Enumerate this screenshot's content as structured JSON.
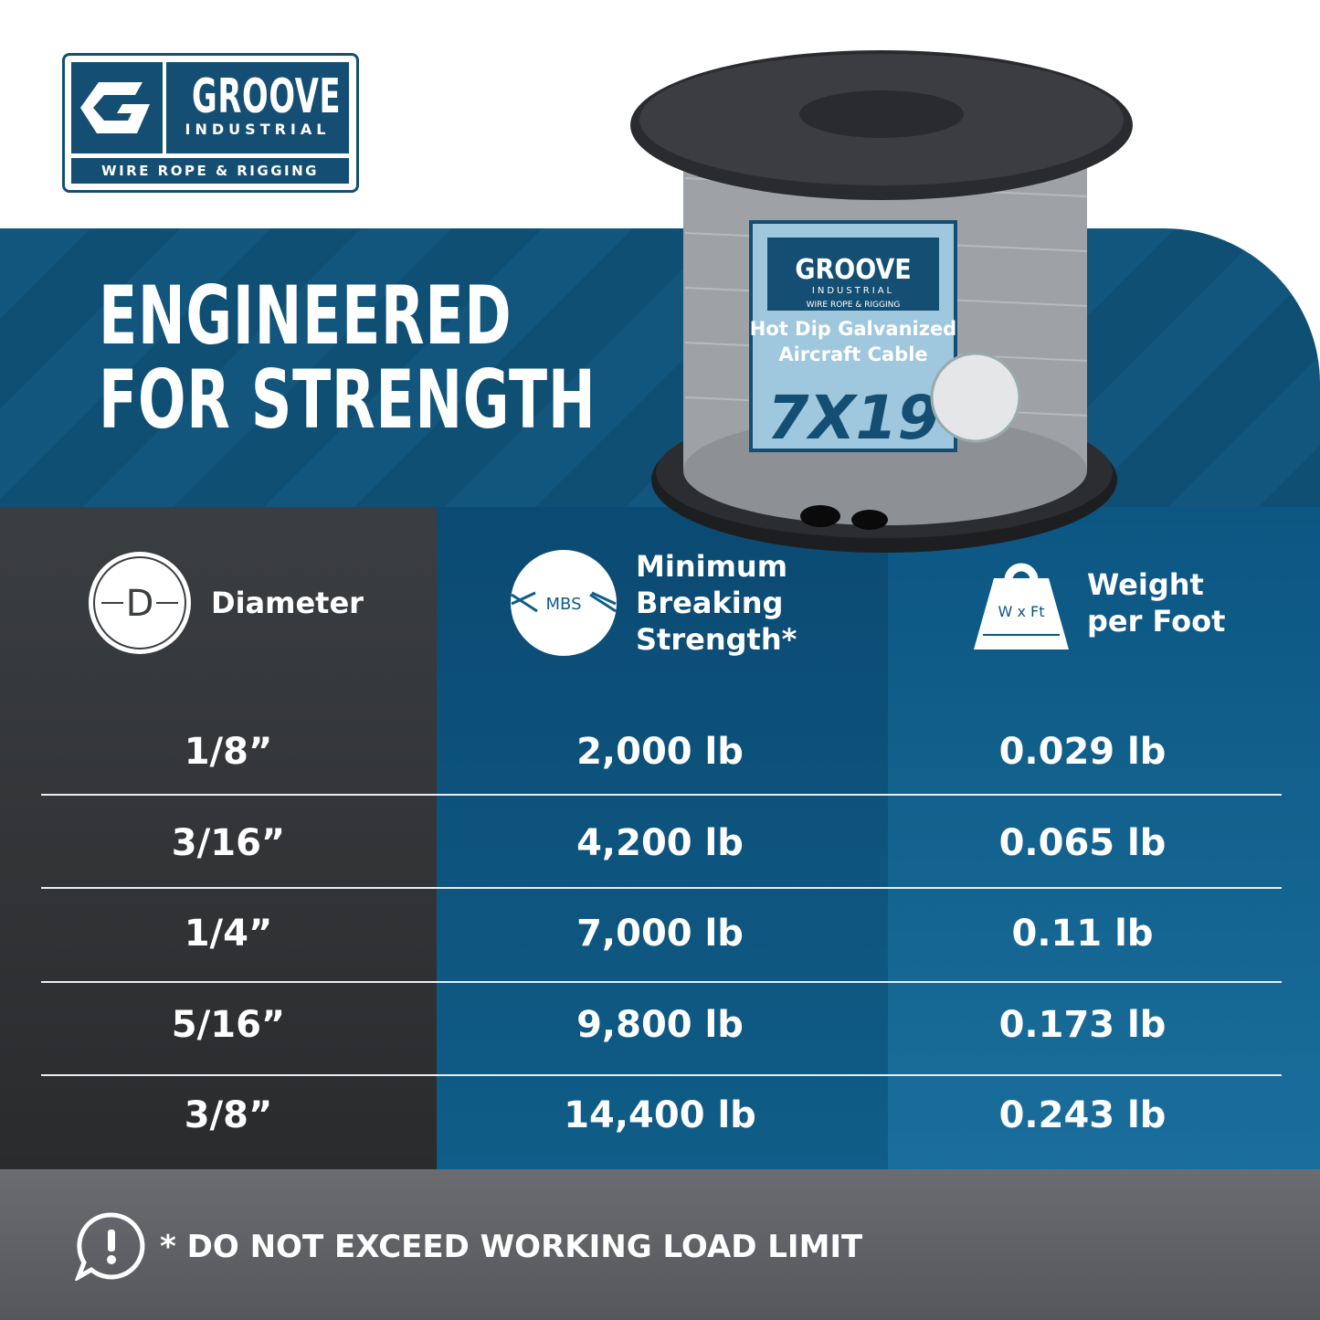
{
  "logo": {
    "brand": "GROOVE",
    "sub": "INDUSTRIAL",
    "tagline": "WIRE ROPE & RIGGING"
  },
  "headline": {
    "line1": "ENGINEERED",
    "line2": "FOR STRENGTH"
  },
  "product_label": {
    "brand": "GROOVE",
    "sub": "INDUSTRIAL",
    "tagline": "WIRE ROPE & RIGGING",
    "line1": "Hot Dip Galvanized",
    "line2": "Aircraft Cable",
    "construction": "7X19"
  },
  "table": {
    "headers": [
      {
        "icon": "diameter-icon",
        "icon_text": "D",
        "label": "Diameter"
      },
      {
        "icon": "mbs-icon",
        "icon_text": "MBS",
        "label_lines": [
          "Minimum",
          "Breaking",
          "Strength*"
        ]
      },
      {
        "icon": "weight-icon",
        "icon_text": "W x Ft",
        "label_lines": [
          "Weight",
          "per Foot"
        ]
      }
    ],
    "rows": [
      {
        "diameter": "1/8”",
        "mbs": "2,000 lb",
        "weight": "0.029 lb"
      },
      {
        "diameter": "3/16”",
        "mbs": "4,200 lb",
        "weight": "0.065 lb"
      },
      {
        "diameter": "1/4”",
        "mbs": "7,000 lb",
        "weight": "0.11 lb"
      },
      {
        "diameter": "5/16”",
        "mbs": "9,800 lb",
        "weight": "0.173 lb"
      },
      {
        "diameter": "3/8”",
        "mbs": "14,400 lb",
        "weight": "0.243 lb"
      }
    ]
  },
  "footer": {
    "icon": "alert-icon",
    "warning": "* DO NOT EXCEED WORKING LOAD LIMIT"
  },
  "colors": {
    "brand_blue": "#144f73",
    "dark_gray": "#3b3e41",
    "footer_gray": "#5f6166"
  }
}
